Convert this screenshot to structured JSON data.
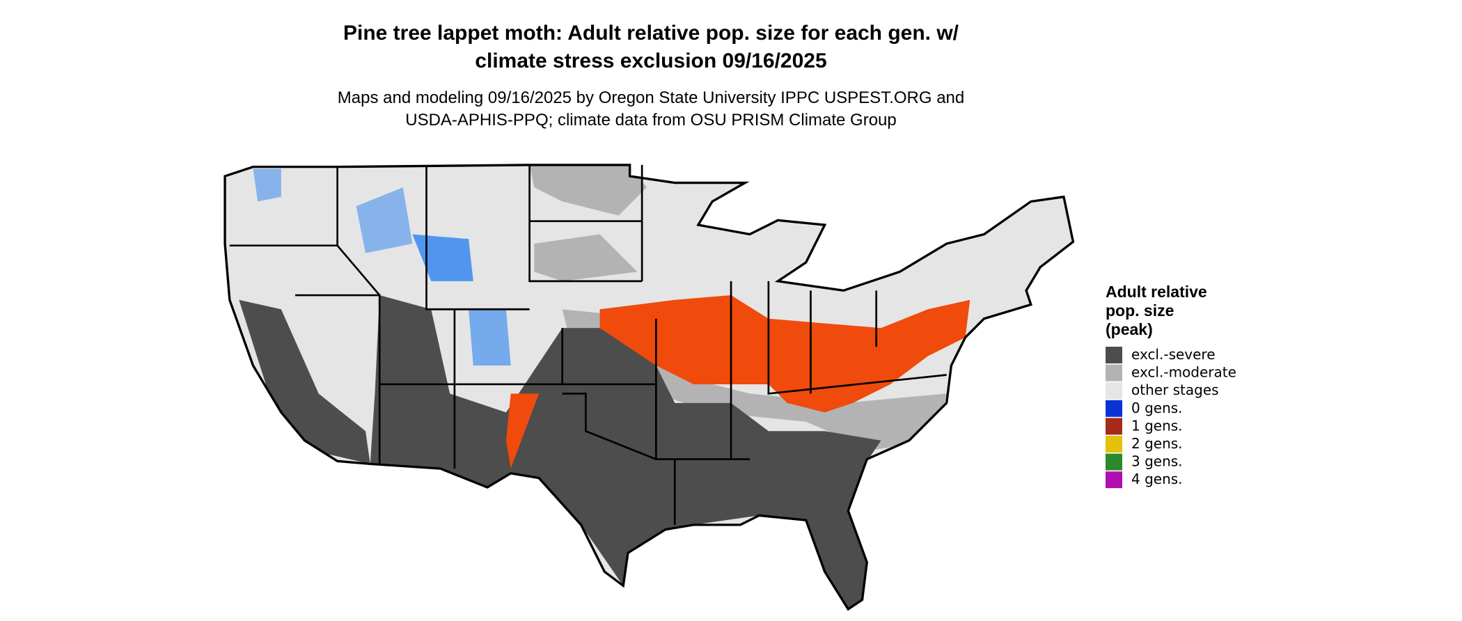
{
  "title": [
    "Pine tree lappet moth: Adult relative pop. size for each gen. w/",
    "climate stress exclusion 09/16/2025"
  ],
  "subtitle": [
    "Maps and modeling 09/16/2025 by Oregon State University IPPC USPEST.ORG and",
    "USDA-APHIS-PPQ; climate data from OSU PRISM Climate Group"
  ],
  "legend": {
    "title": [
      "Adult relative",
      "pop. size",
      "(peak)"
    ],
    "items": [
      {
        "label": "excl.-severe",
        "color": "#4d4d4d"
      },
      {
        "label": "excl.-moderate",
        "color": "#b3b3b3"
      },
      {
        "label": "other stages",
        "color": "#e5e5e5"
      },
      {
        "label": "0 gens.",
        "color": "#0a33d6"
      },
      {
        "label": "1 gens.",
        "color": "#a82a18"
      },
      {
        "label": "2 gens.",
        "color": "#e3c20a"
      },
      {
        "label": "3 gens.",
        "color": "#2a8a2a"
      },
      {
        "label": "4 gens.",
        "color": "#b00fb0"
      }
    ]
  }
}
